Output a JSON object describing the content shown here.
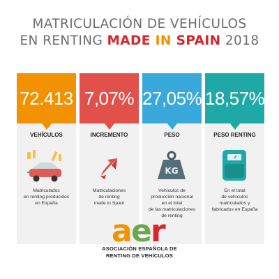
{
  "title": {
    "line1": "MATRICULACIÓN DE VEHÍCULOS",
    "line2_prefix": "EN RENTING ",
    "made": "MADE",
    "in_word": " IN ",
    "spain": "SPAIN",
    "year": " 2018"
  },
  "cards": [
    {
      "value": "72.413",
      "label": "VEHÍCULOS",
      "desc_lines": [
        "Matriculados",
        "en renting producidos",
        "en España"
      ],
      "color": "#f39200",
      "icon": "car-with-wrench-icon"
    },
    {
      "value": "7,07%",
      "label": "INCREMENTO",
      "desc_lines": [
        "Matriculaciones",
        "de renting",
        "made in Spain"
      ],
      "color": "#e2504b",
      "icon": "up-arrow-icon"
    },
    {
      "value": "27,05%",
      "label": "PESO",
      "desc_lines": [
        "Vehículos de",
        "producción nacional",
        "en el total",
        "de las matriculaciones",
        "de renting"
      ],
      "color": "#39a9dc",
      "icon": "kg-weight-icon"
    },
    {
      "value": "18,57%",
      "label": "PESO RENTING",
      "desc_lines": [
        "En el total",
        "de vehículos",
        "matriculados y",
        "fabricados en España"
      ],
      "color": "#1fa9a6",
      "icon": "scale-icon"
    }
  ],
  "logo": {
    "letter_a": "a",
    "letter_e": "e",
    "letter_r": "r",
    "sub1": "ASOCIACIÓN ESPAÑOLA DE",
    "sub2": "RENTING DE VEHÍCULOS",
    "color_a": "#f39200",
    "color_e": "#6aa84f",
    "color_r": "#d7262f"
  }
}
